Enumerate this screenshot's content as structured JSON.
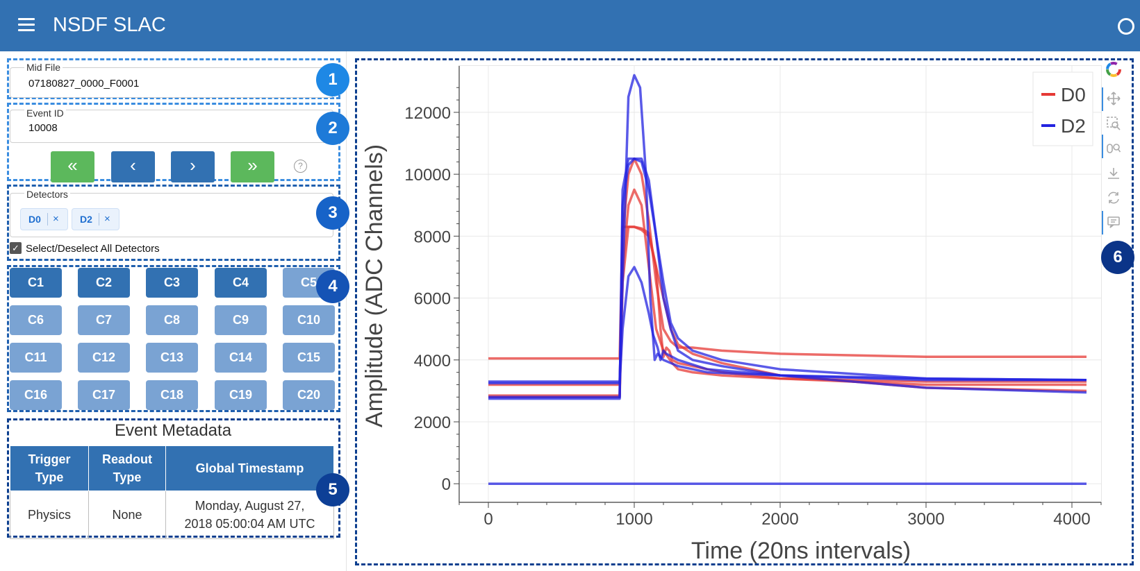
{
  "header": {
    "title": "NSDF SLAC",
    "menu_icon": "hamburger-menu-icon",
    "status_icon": "circle-status-icon"
  },
  "mid_file": {
    "label": "Mid File",
    "value": "07180827_0000_F0001"
  },
  "event_id": {
    "label": "Event ID",
    "value": "10008"
  },
  "nav_buttons": [
    {
      "name": "first-event-button",
      "glyph": "«"
    },
    {
      "name": "prev-event-button",
      "glyph": "‹"
    },
    {
      "name": "next-event-button",
      "glyph": "›"
    },
    {
      "name": "last-event-button",
      "glyph": "»"
    }
  ],
  "help_glyph": "?",
  "detectors": {
    "label": "Detectors",
    "selected": [
      "D0",
      "D2"
    ],
    "remove_glyph": "×",
    "select_all_label": "Select/Deselect All Detectors",
    "select_all_checked": true,
    "check_glyph": "✓"
  },
  "channels": {
    "labels": [
      "C1",
      "C2",
      "C3",
      "C4",
      "C5",
      "C6",
      "C7",
      "C8",
      "C9",
      "C10",
      "C11",
      "C12",
      "C13",
      "C14",
      "C15",
      "C16",
      "C17",
      "C18",
      "C19",
      "C20"
    ],
    "active": [
      "C1",
      "C2",
      "C3",
      "C4"
    ]
  },
  "metadata": {
    "title": "Event Metadata",
    "headers": [
      "Trigger Type",
      "Readout Type",
      "Global Timestamp"
    ],
    "row": [
      "Physics",
      "None",
      "Monday, August 27, 2018 05:00:04 AM UTC"
    ]
  },
  "badges": [
    "1",
    "2",
    "3",
    "4",
    "5",
    "6"
  ],
  "colors": {
    "primary": "#3271b2",
    "channel_inactive": "#7aa3d3",
    "nav_green": "#5cb85c",
    "d0": "#e53935",
    "d2": "#2323e0"
  },
  "toolbar_icons": [
    "bokeh-logo-icon",
    "pan-icon",
    "box-zoom-icon",
    "wheel-zoom-icon",
    "save-icon",
    "reset-icon",
    "hover-icon"
  ],
  "chart_data": {
    "type": "line",
    "title": "",
    "xlabel": "Time (20ns intervals)",
    "ylabel": "Amplitude (ADC Channels)",
    "xlim": [
      -200,
      4200
    ],
    "ylim": [
      -600,
      13500
    ],
    "x_ticks": [
      0,
      1000,
      2000,
      3000,
      4000
    ],
    "y_ticks": [
      0,
      2000,
      4000,
      6000,
      8000,
      10000,
      12000
    ],
    "grid": true,
    "legend": {
      "position": "top-right",
      "entries": [
        "D0",
        "D2"
      ]
    },
    "series": [
      {
        "name": "D0",
        "color": "#e53935",
        "x": [
          0,
          900,
          920,
          960,
          1000,
          1050,
          1100,
          1150,
          1180,
          1200,
          1220,
          1240,
          1260,
          1300,
          1400,
          1600,
          2000,
          3000,
          4100
        ],
        "y": [
          4050,
          4050,
          8300,
          8300,
          8300,
          8250,
          8100,
          7000,
          5000,
          4100,
          4400,
          4300,
          4000,
          3900,
          3800,
          3600,
          3400,
          3200,
          3200
        ]
      },
      {
        "name": "D0",
        "color": "#e53935",
        "x": [
          0,
          900,
          920,
          960,
          1000,
          1050,
          1100,
          1150,
          1200,
          1230,
          1260,
          1300,
          1400,
          1600,
          2000,
          3000,
          4100
        ],
        "y": [
          3200,
          3200,
          7000,
          9000,
          9500,
          9000,
          7000,
          5000,
          4300,
          4100,
          3900,
          3700,
          3600,
          3500,
          3400,
          3300,
          3300
        ]
      },
      {
        "name": "D0",
        "color": "#e53935",
        "x": [
          0,
          900,
          920,
          960,
          1000,
          1050,
          1100,
          1150,
          1200,
          1250,
          1300,
          1400,
          1600,
          2000,
          3000,
          4100
        ],
        "y": [
          2850,
          2850,
          8000,
          10000,
          10500,
          10000,
          8500,
          6500,
          5000,
          4600,
          4400,
          4400,
          4300,
          4200,
          4100,
          4100
        ]
      },
      {
        "name": "D0",
        "color": "#e53935",
        "x": [
          0,
          900,
          920,
          960,
          1000,
          1050,
          1100,
          1150,
          1200,
          1250,
          1300,
          1400,
          1600,
          2000,
          3000,
          4100
        ],
        "y": [
          2800,
          2800,
          6500,
          8300,
          8300,
          8200,
          8000,
          7000,
          6000,
          5000,
          4500,
          4200,
          3900,
          3500,
          3100,
          3000
        ]
      },
      {
        "name": "D2",
        "color": "#2323e0",
        "x": [
          0,
          900,
          920,
          960,
          1000,
          1040,
          1080,
          1110,
          1140,
          1160,
          1200,
          1300,
          1500,
          2000,
          3000,
          4100
        ],
        "y": [
          3300,
          3300,
          6500,
          12500,
          13200,
          12800,
          10000,
          6000,
          4000,
          4200,
          4000,
          3800,
          3600,
          3500,
          3400,
          3350
        ]
      },
      {
        "name": "D2",
        "color": "#2323e0",
        "x": [
          0,
          900,
          920,
          960,
          1000,
          1050,
          1100,
          1130,
          1160,
          1180,
          1200,
          1220,
          1300,
          1500,
          2000,
          3000,
          4100
        ],
        "y": [
          3250,
          3250,
          5000,
          6700,
          7000,
          6500,
          5500,
          4800,
          4400,
          4000,
          4300,
          4200,
          4000,
          3700,
          3500,
          3350,
          3350
        ]
      },
      {
        "name": "D2",
        "color": "#2323e0",
        "x": [
          0,
          900,
          920,
          960,
          1000,
          1050,
          1100,
          1150,
          1200,
          1250,
          1300,
          1400,
          1600,
          2000,
          3000,
          4100
        ],
        "y": [
          2800,
          2800,
          9000,
          10300,
          10500,
          10500,
          9800,
          8000,
          6000,
          5000,
          4300,
          4000,
          3800,
          3500,
          3100,
          2950
        ]
      },
      {
        "name": "D2",
        "color": "#2323e0",
        "x": [
          0,
          900,
          920,
          960,
          1000,
          1050,
          1100,
          1150,
          1200,
          1250,
          1300,
          1400,
          1600,
          2000,
          3000,
          4100
        ],
        "y": [
          2750,
          2750,
          9500,
          10500,
          10500,
          10400,
          9500,
          8000,
          6500,
          5200,
          4700,
          4300,
          4000,
          3700,
          3400,
          3350
        ]
      },
      {
        "name": "D2",
        "color": "#2323e0",
        "x": [
          0,
          4100
        ],
        "y": [
          0,
          0
        ]
      }
    ]
  }
}
